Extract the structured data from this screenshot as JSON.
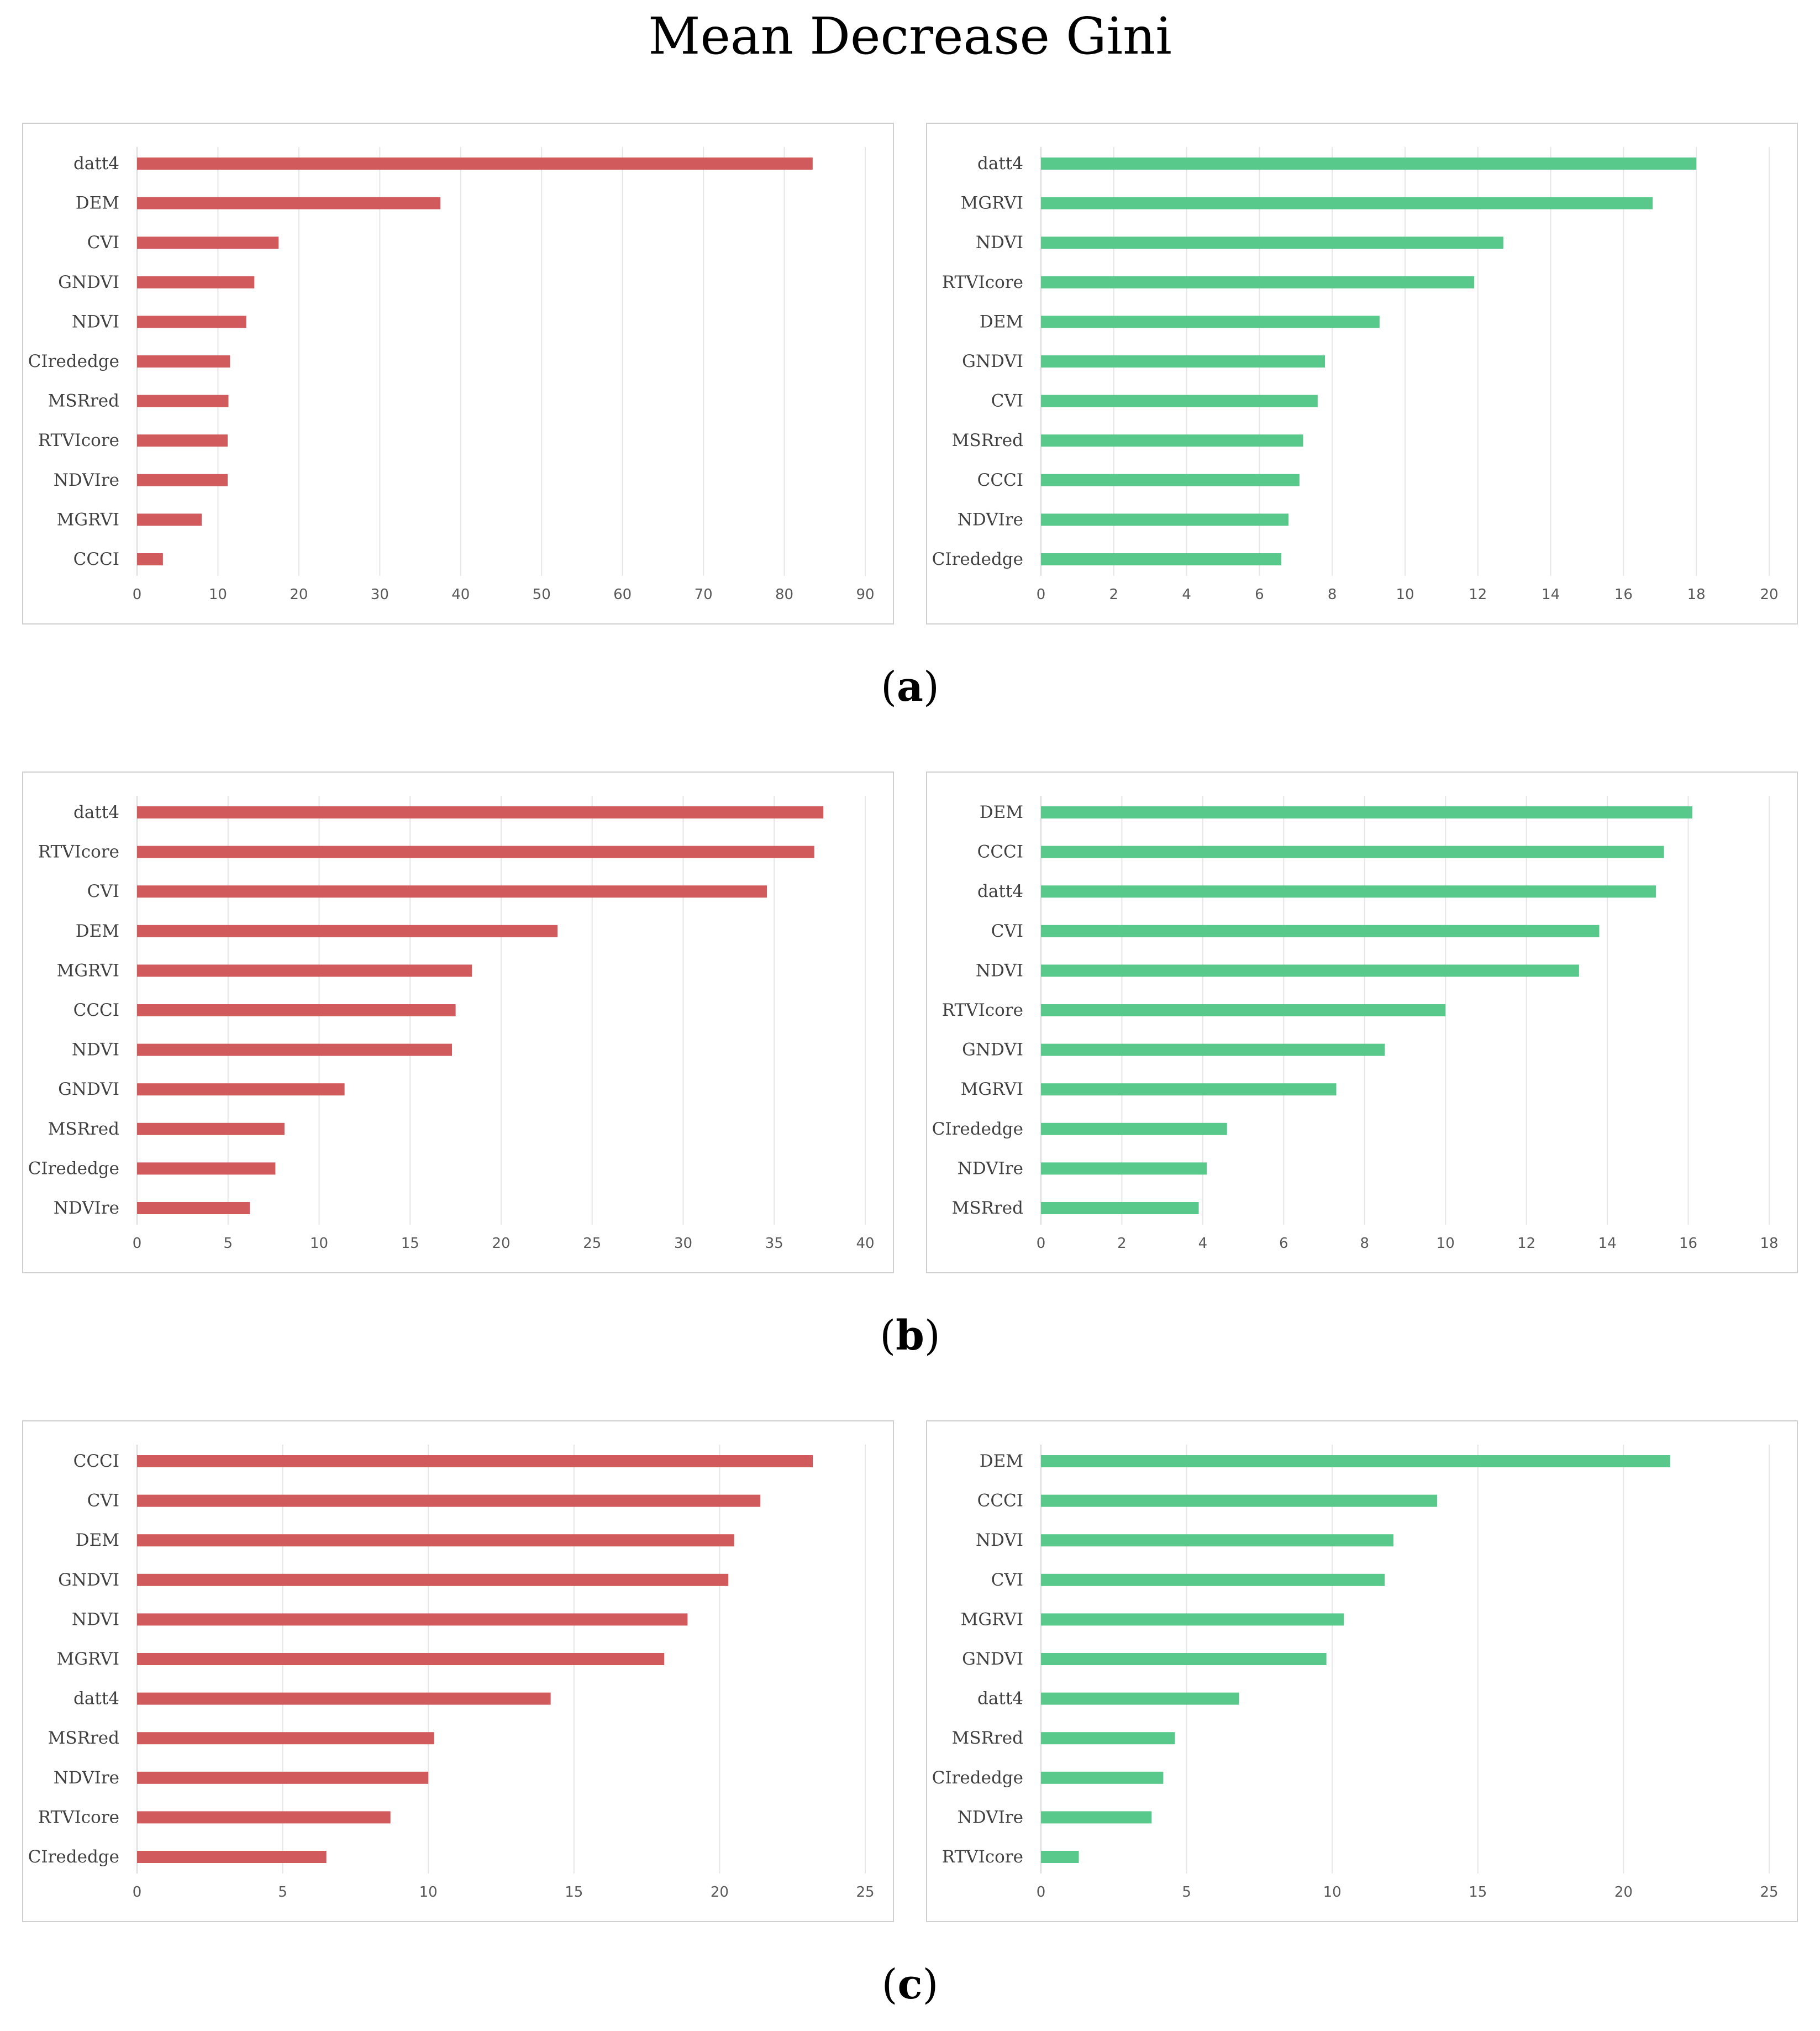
{
  "figure_title": "Mean Decrease Gini",
  "panel_labels": [
    {
      "open": "(",
      "letter": "a",
      "close": ")"
    },
    {
      "open": "(",
      "letter": "b",
      "close": ")"
    },
    {
      "open": "(",
      "letter": "c",
      "close": ")"
    }
  ],
  "colors": {
    "red_series": "#d05a5c",
    "green_series": "#58c98a",
    "grid": "#e6e6e6",
    "border": "#cfcfcf"
  },
  "chart_data": [
    {
      "type": "bar",
      "orientation": "horizontal",
      "panel": "a",
      "side": "left",
      "color": "#d05a5c",
      "categories": [
        "datt4",
        "DEM",
        "CVI",
        "GNDVI",
        "NDVI",
        "CIrededge",
        "MSRred",
        "RTVIcore",
        "NDVIre",
        "MGRVI",
        "CCCI"
      ],
      "values": [
        83.5,
        37.5,
        17.5,
        14.5,
        13.5,
        11.5,
        11.3,
        11.2,
        11.2,
        8,
        3.2
      ],
      "xlim": [
        0,
        90
      ],
      "xticks": [
        "0",
        "10",
        "20",
        "30",
        "40",
        "50",
        "60",
        "70",
        "80",
        "90"
      ],
      "grid": true
    },
    {
      "type": "bar",
      "orientation": "horizontal",
      "panel": "a",
      "side": "right",
      "color": "#58c98a",
      "categories": [
        "datt4",
        "MGRVI",
        "NDVI",
        "RTVIcore",
        "DEM",
        "GNDVI",
        "CVI",
        "MSRred",
        "CCCI",
        "NDVIre",
        "CIrededge"
      ],
      "values": [
        18,
        16.8,
        12.7,
        11.9,
        9.3,
        7.8,
        7.6,
        7.2,
        7.1,
        6.8,
        6.6
      ],
      "xlim": [
        0,
        20
      ],
      "xticks": [
        "0",
        "2",
        "4",
        "6",
        "8",
        "10",
        "12",
        "14",
        "16",
        "18",
        "20"
      ],
      "grid": true
    },
    {
      "type": "bar",
      "orientation": "horizontal",
      "panel": "b",
      "side": "left",
      "color": "#d05a5c",
      "categories": [
        "datt4",
        "RTVIcore",
        "CVI",
        "DEM",
        "MGRVI",
        "CCCI",
        "NDVI",
        "GNDVI",
        "MSRred",
        "CIrededge",
        "NDVIre"
      ],
      "values": [
        37.7,
        37.2,
        34.6,
        23.1,
        18.4,
        17.5,
        17.3,
        11.4,
        8.1,
        7.6,
        6.2
      ],
      "xlim": [
        0,
        40
      ],
      "xticks": [
        "0",
        "5",
        "10",
        "15",
        "20",
        "25",
        "30",
        "35",
        "40"
      ],
      "grid": true
    },
    {
      "type": "bar",
      "orientation": "horizontal",
      "panel": "b",
      "side": "right",
      "color": "#58c98a",
      "categories": [
        "DEM",
        "CCCI",
        "datt4",
        "CVI",
        "NDVI",
        "RTVIcore",
        "GNDVI",
        "MGRVI",
        "CIrededge",
        "NDVIre",
        "MSRred"
      ],
      "values": [
        16.1,
        15.4,
        15.2,
        13.8,
        13.3,
        10,
        8.5,
        7.3,
        4.6,
        4.1,
        3.9
      ],
      "xlim": [
        0,
        18
      ],
      "xticks": [
        "0",
        "2",
        "4",
        "6",
        "8",
        "10",
        "12",
        "14",
        "16",
        "18"
      ],
      "grid": true
    },
    {
      "type": "bar",
      "orientation": "horizontal",
      "panel": "c",
      "side": "left",
      "color": "#d05a5c",
      "categories": [
        "CCCI",
        "CVI",
        "DEM",
        "GNDVI",
        "NDVI",
        "MGRVI",
        "datt4",
        "MSRred",
        "NDVIre",
        "RTVIcore",
        "CIrededge"
      ],
      "values": [
        23.2,
        21.4,
        20.5,
        20.3,
        18.9,
        18.1,
        14.2,
        10.2,
        10,
        8.7,
        6.5
      ],
      "xlim": [
        0,
        25
      ],
      "xticks": [
        "0",
        "5",
        "10",
        "15",
        "20",
        "25"
      ],
      "grid": true
    },
    {
      "type": "bar",
      "orientation": "horizontal",
      "panel": "c",
      "side": "right",
      "color": "#58c98a",
      "categories": [
        "DEM",
        "CCCI",
        "NDVI",
        "CVI",
        "MGRVI",
        "GNDVI",
        "datt4",
        "MSRred",
        "CIrededge",
        "NDVIre",
        "RTVIcore"
      ],
      "values": [
        21.6,
        13.6,
        12.1,
        11.8,
        10.4,
        9.8,
        6.8,
        4.6,
        4.2,
        3.8,
        1.3
      ],
      "xlim": [
        0,
        25
      ],
      "xticks": [
        "0",
        "5",
        "10",
        "15",
        "20",
        "25"
      ],
      "grid": true
    }
  ]
}
